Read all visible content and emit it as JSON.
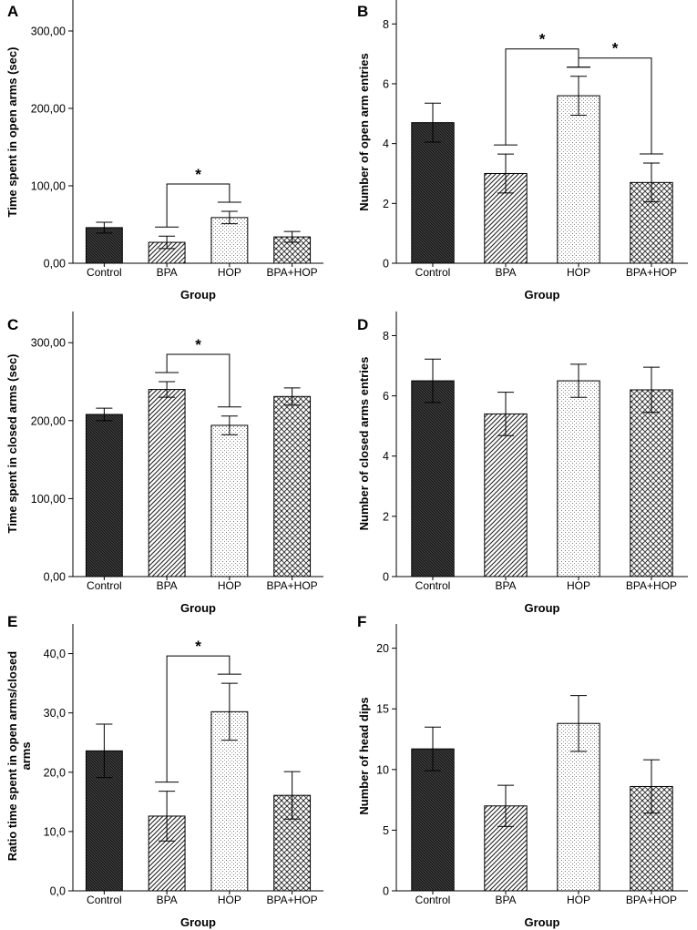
{
  "chart_data": [
    {
      "type": "bar",
      "panel": "A",
      "categories": [
        "Control",
        "BPA",
        "HOP",
        "BPA+HOP"
      ],
      "values": [
        46,
        27,
        59,
        34
      ],
      "errors": [
        7,
        8,
        8,
        7
      ],
      "xlabel": "Group",
      "ylabel": "Time spent in open arms (sec)",
      "ylim": [
        0,
        340
      ],
      "yticks": [
        0,
        100,
        200,
        300
      ],
      "ytick_labels": [
        "0,00",
        "100,00",
        "200,00",
        "300,00"
      ],
      "significance": [
        {
          "from": "BPA",
          "to": "HOP",
          "label": "*"
        }
      ]
    },
    {
      "type": "bar",
      "panel": "B",
      "categories": [
        "Control",
        "BPA",
        "HOP",
        "BPA+HOP"
      ],
      "values": [
        4.7,
        3.0,
        5.6,
        2.7
      ],
      "errors": [
        0.65,
        0.65,
        0.65,
        0.65
      ],
      "xlabel": "Group",
      "ylabel": "Number of open arm entries",
      "ylim": [
        0,
        8.8
      ],
      "yticks": [
        0,
        2,
        4,
        6,
        8
      ],
      "ytick_labels": [
        "0",
        "2",
        "4",
        "6",
        "8"
      ],
      "significance": [
        {
          "from": "BPA",
          "to": "HOP",
          "label": "*"
        },
        {
          "from": "HOP",
          "to": "BPA+HOP",
          "label": "*"
        }
      ]
    },
    {
      "type": "bar",
      "panel": "C",
      "categories": [
        "Control",
        "BPA",
        "HOP",
        "BPA+HOP"
      ],
      "values": [
        208,
        240,
        194,
        231
      ],
      "errors": [
        8,
        10,
        12,
        11
      ],
      "xlabel": "Group",
      "ylabel": "Time spent in closed arms (sec)",
      "ylim": [
        0,
        340
      ],
      "yticks": [
        0,
        100,
        200,
        300
      ],
      "ytick_labels": [
        "0,00",
        "100,00",
        "200,00",
        "300,00"
      ],
      "significance": [
        {
          "from": "BPA",
          "to": "HOP",
          "label": "*"
        }
      ]
    },
    {
      "type": "bar",
      "panel": "D",
      "categories": [
        "Control",
        "BPA",
        "HOP",
        "BPA+HOP"
      ],
      "values": [
        6.5,
        5.4,
        6.5,
        6.2
      ],
      "errors": [
        0.72,
        0.72,
        0.55,
        0.75
      ],
      "xlabel": "Group",
      "ylabel": "Number of closed arms entries",
      "ylim": [
        0,
        8.8
      ],
      "yticks": [
        0,
        2,
        4,
        6,
        8
      ],
      "ytick_labels": [
        "0",
        "2",
        "4",
        "6",
        "8"
      ],
      "significance": []
    },
    {
      "type": "bar",
      "panel": "E",
      "categories": [
        "Control",
        "BPA",
        "HOP",
        "BPA+HOP"
      ],
      "values": [
        23.6,
        12.6,
        30.2,
        16.1
      ],
      "errors": [
        4.5,
        4.2,
        4.8,
        4.0
      ],
      "xlabel": "Group",
      "ylabel": "Ratio time spent in open arms/closed arms",
      "ylim": [
        0,
        45
      ],
      "yticks": [
        0,
        10,
        20,
        30,
        40
      ],
      "ytick_labels": [
        "0,0",
        "10,0",
        "20,0",
        "30,0",
        "40,0"
      ],
      "significance": [
        {
          "from": "BPA",
          "to": "HOP",
          "label": "*"
        }
      ]
    },
    {
      "type": "bar",
      "panel": "F",
      "categories": [
        "Control",
        "BPA",
        "HOP",
        "BPA+HOP"
      ],
      "values": [
        11.7,
        7.0,
        13.8,
        8.6
      ],
      "errors": [
        1.8,
        1.7,
        2.3,
        2.2
      ],
      "xlabel": "Group",
      "ylabel": "Number of head dips",
      "ylim": [
        0,
        22
      ],
      "yticks": [
        0,
        5,
        10,
        15,
        20
      ],
      "ytick_labels": [
        "0",
        "5",
        "10",
        "15",
        "20"
      ],
      "significance": []
    }
  ],
  "patterns": [
    "dark-crosshatch",
    "diagonal-hatch",
    "light-dots",
    "checker-hatch"
  ]
}
